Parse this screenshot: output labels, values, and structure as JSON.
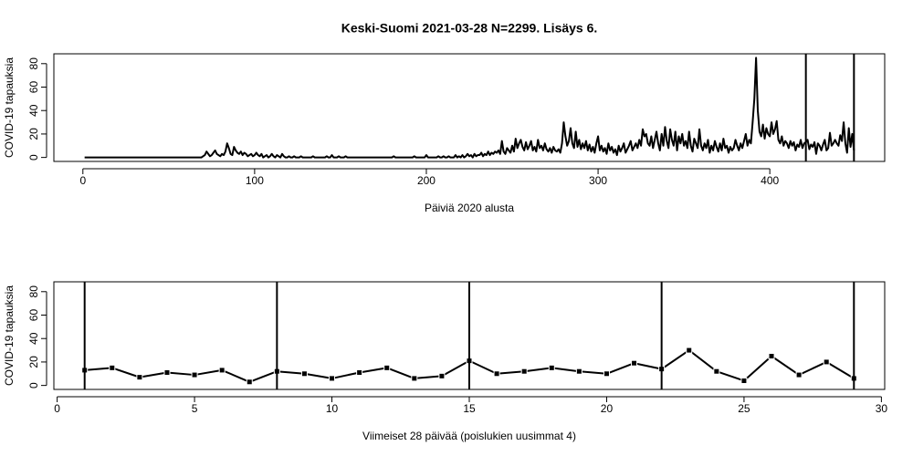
{
  "chart_data": [
    {
      "type": "line",
      "title": "Keski-Suomi 2021-03-28 N=2299. Lisäys 6.",
      "xlabel": "Päiviä 2020 alusta",
      "ylabel": "COVID-19 tapauksia",
      "color": "#000000",
      "xlim": [
        -16.9,
        466.9
      ],
      "ylim": [
        -3.4,
        88.4
      ],
      "xticks": [
        0,
        100,
        200,
        300,
        400
      ],
      "yticks": [
        0,
        20,
        40,
        60,
        80
      ],
      "vlines": [
        421,
        449
      ],
      "x": [
        1,
        2,
        3,
        4,
        5,
        6,
        7,
        8,
        9,
        10,
        11,
        12,
        13,
        14,
        15,
        16,
        17,
        18,
        19,
        20,
        21,
        22,
        23,
        24,
        25,
        26,
        27,
        28,
        29,
        30,
        31,
        32,
        33,
        34,
        35,
        36,
        37,
        38,
        39,
        40,
        41,
        42,
        43,
        44,
        45,
        46,
        47,
        48,
        49,
        50,
        51,
        52,
        53,
        54,
        55,
        56,
        57,
        58,
        59,
        60,
        61,
        62,
        63,
        64,
        65,
        66,
        67,
        68,
        69,
        70,
        71,
        72,
        73,
        74,
        75,
        76,
        77,
        78,
        79,
        80,
        81,
        82,
        83,
        84,
        85,
        86,
        87,
        88,
        89,
        90,
        91,
        92,
        93,
        94,
        95,
        96,
        97,
        98,
        99,
        100,
        101,
        102,
        103,
        104,
        105,
        106,
        107,
        108,
        109,
        110,
        111,
        112,
        113,
        114,
        115,
        116,
        117,
        118,
        119,
        120,
        121,
        122,
        123,
        124,
        125,
        126,
        127,
        128,
        129,
        130,
        131,
        132,
        133,
        134,
        135,
        136,
        137,
        138,
        139,
        140,
        141,
        142,
        143,
        144,
        145,
        146,
        147,
        148,
        149,
        150,
        151,
        152,
        153,
        154,
        155,
        156,
        157,
        158,
        159,
        160,
        161,
        162,
        163,
        164,
        165,
        166,
        167,
        168,
        169,
        170,
        171,
        172,
        173,
        174,
        175,
        176,
        177,
        178,
        179,
        180,
        181,
        182,
        183,
        184,
        185,
        186,
        187,
        188,
        189,
        190,
        191,
        192,
        193,
        194,
        195,
        196,
        197,
        198,
        199,
        200,
        201,
        202,
        203,
        204,
        205,
        206,
        207,
        208,
        209,
        210,
        211,
        212,
        213,
        214,
        215,
        216,
        217,
        218,
        219,
        220,
        221,
        222,
        223,
        224,
        225,
        226,
        227,
        228,
        229,
        230,
        231,
        232,
        233,
        234,
        235,
        236,
        237,
        238,
        239,
        240,
        241,
        242,
        243,
        244,
        245,
        246,
        247,
        248,
        249,
        250,
        251,
        252,
        253,
        254,
        255,
        256,
        257,
        258,
        259,
        260,
        261,
        262,
        263,
        264,
        265,
        266,
        267,
        268,
        269,
        270,
        271,
        272,
        273,
        274,
        275,
        276,
        277,
        278,
        279,
        280,
        281,
        282,
        283,
        284,
        285,
        286,
        287,
        288,
        289,
        290,
        291,
        292,
        293,
        294,
        295,
        296,
        297,
        298,
        299,
        300,
        301,
        302,
        303,
        304,
        305,
        306,
        307,
        308,
        309,
        310,
        311,
        312,
        313,
        314,
        315,
        316,
        317,
        318,
        319,
        320,
        321,
        322,
        323,
        324,
        325,
        326,
        327,
        328,
        329,
        330,
        331,
        332,
        333,
        334,
        335,
        336,
        337,
        338,
        339,
        340,
        341,
        342,
        343,
        344,
        345,
        346,
        347,
        348,
        349,
        350,
        351,
        352,
        353,
        354,
        355,
        356,
        357,
        358,
        359,
        360,
        361,
        362,
        363,
        364,
        365,
        366,
        367,
        368,
        369,
        370,
        371,
        372,
        373,
        374,
        375,
        376,
        377,
        378,
        379,
        380,
        381,
        382,
        383,
        384,
        385,
        386,
        387,
        388,
        389,
        390,
        391,
        392,
        393,
        394,
        395,
        396,
        397,
        398,
        399,
        400,
        401,
        402,
        403,
        404,
        405,
        406,
        407,
        408,
        409,
        410,
        411,
        412,
        413,
        414,
        415,
        416,
        417,
        418,
        419,
        420,
        421,
        422,
        423,
        424,
        425,
        426,
        427,
        428,
        429,
        430,
        431,
        432,
        433,
        434,
        435,
        436,
        437,
        438,
        439,
        440,
        441,
        442,
        443,
        444,
        445,
        446,
        447,
        448,
        449
      ],
      "values": [
        0,
        0,
        0,
        0,
        0,
        0,
        0,
        0,
        0,
        0,
        0,
        0,
        0,
        0,
        0,
        0,
        0,
        0,
        0,
        0,
        0,
        0,
        0,
        0,
        0,
        0,
        0,
        0,
        0,
        0,
        0,
        0,
        0,
        0,
        0,
        0,
        0,
        0,
        0,
        0,
        0,
        0,
        0,
        0,
        0,
        0,
        0,
        0,
        0,
        0,
        0,
        0,
        0,
        0,
        0,
        0,
        0,
        0,
        0,
        0,
        0,
        0,
        0,
        0,
        0,
        0,
        0,
        0,
        0,
        1,
        2,
        5,
        3,
        1,
        2,
        4,
        6,
        3,
        2,
        1,
        3,
        2,
        5,
        12,
        8,
        3,
        2,
        9,
        6,
        4,
        3,
        5,
        2,
        4,
        3,
        1,
        2,
        3,
        1,
        2,
        4,
        2,
        1,
        3,
        0,
        1,
        2,
        0,
        1,
        3,
        1,
        0,
        2,
        1,
        0,
        3,
        1,
        0,
        0,
        1,
        0,
        0,
        1,
        0,
        0,
        0,
        1,
        0,
        0,
        0,
        0,
        0,
        0,
        1,
        0,
        0,
        0,
        0,
        0,
        0,
        0,
        1,
        0,
        0,
        2,
        0,
        0,
        0,
        1,
        0,
        0,
        0,
        1,
        0,
        0,
        0,
        0,
        0,
        0,
        0,
        0,
        0,
        0,
        0,
        0,
        0,
        0,
        0,
        0,
        0,
        0,
        0,
        0,
        0,
        0,
        0,
        0,
        0,
        0,
        0,
        1,
        0,
        0,
        0,
        0,
        0,
        0,
        0,
        0,
        0,
        0,
        0,
        1,
        0,
        0,
        0,
        0,
        0,
        0,
        2,
        0,
        0,
        0,
        0,
        0,
        0,
        1,
        0,
        0,
        1,
        0,
        0,
        1,
        0,
        0,
        0,
        2,
        0,
        1,
        0,
        2,
        0,
        1,
        3,
        1,
        2,
        0,
        3,
        1,
        2,
        2,
        4,
        1,
        3,
        2,
        5,
        2,
        4,
        3,
        5,
        4,
        6,
        3,
        14,
        5,
        3,
        8,
        6,
        4,
        10,
        5,
        16,
        8,
        12,
        15,
        9,
        6,
        13,
        7,
        10,
        14,
        6,
        9,
        5,
        15,
        8,
        10,
        6,
        12,
        7,
        5,
        8,
        4,
        9,
        6,
        5,
        7,
        4,
        12,
        30,
        18,
        10,
        14,
        25,
        12,
        8,
        22,
        9,
        15,
        7,
        12,
        8,
        14,
        6,
        11,
        5,
        9,
        4,
        12,
        18,
        6,
        10,
        5,
        8,
        3,
        12,
        6,
        9,
        4,
        7,
        2,
        10,
        5,
        8,
        12,
        4,
        7,
        10,
        14,
        6,
        9,
        12,
        8,
        15,
        10,
        24,
        18,
        20,
        12,
        10,
        18,
        8,
        15,
        22,
        12,
        6,
        20,
        10,
        26,
        14,
        8,
        24,
        15,
        10,
        22,
        6,
        18,
        12,
        20,
        10,
        14,
        8,
        22,
        10,
        5,
        16,
        12,
        8,
        24,
        10,
        6,
        12,
        8,
        15,
        4,
        10,
        6,
        14,
        9,
        5,
        12,
        6,
        16,
        8,
        10,
        4,
        9,
        6,
        8,
        15,
        10,
        6,
        12,
        8,
        14,
        20,
        10,
        15,
        12,
        30,
        50,
        85,
        40,
        22,
        18,
        28,
        16,
        25,
        20,
        18,
        30,
        20,
        24,
        31,
        15,
        12,
        18,
        10,
        14,
        12,
        8,
        14,
        10,
        13,
        6,
        11,
        9,
        15,
        8,
        12,
        13,
        15,
        7,
        11,
        9,
        13,
        3,
        12,
        10,
        6,
        11,
        15,
        6,
        8,
        21,
        10,
        12,
        15,
        12,
        10,
        19,
        14,
        30,
        12,
        4,
        25,
        9,
        20,
        6
      ]
    },
    {
      "type": "line",
      "markers": true,
      "xlabel": "Viimeiset 28 päivää (poislukien uusimmat 4)",
      "ylabel": "COVID-19 tapauksia",
      "color": "#000000",
      "xlim": [
        -0.12,
        30.12
      ],
      "ylim": [
        -3.4,
        88.4
      ],
      "xticks": [
        0,
        5,
        10,
        15,
        20,
        25,
        30
      ],
      "yticks": [
        0,
        20,
        40,
        60,
        80
      ],
      "vlines": [
        1,
        8,
        15,
        22,
        29
      ],
      "x": [
        1,
        2,
        3,
        4,
        5,
        6,
        7,
        8,
        9,
        10,
        11,
        12,
        13,
        14,
        15,
        16,
        17,
        18,
        19,
        20,
        21,
        22,
        23,
        24,
        25,
        26,
        27,
        28,
        29
      ],
      "values": [
        13,
        15,
        7,
        11,
        9,
        13,
        3,
        12,
        10,
        6,
        11,
        15,
        6,
        8,
        21,
        10,
        12,
        15,
        12,
        10,
        19,
        14,
        30,
        12,
        4,
        25,
        9,
        20,
        6
      ]
    }
  ]
}
